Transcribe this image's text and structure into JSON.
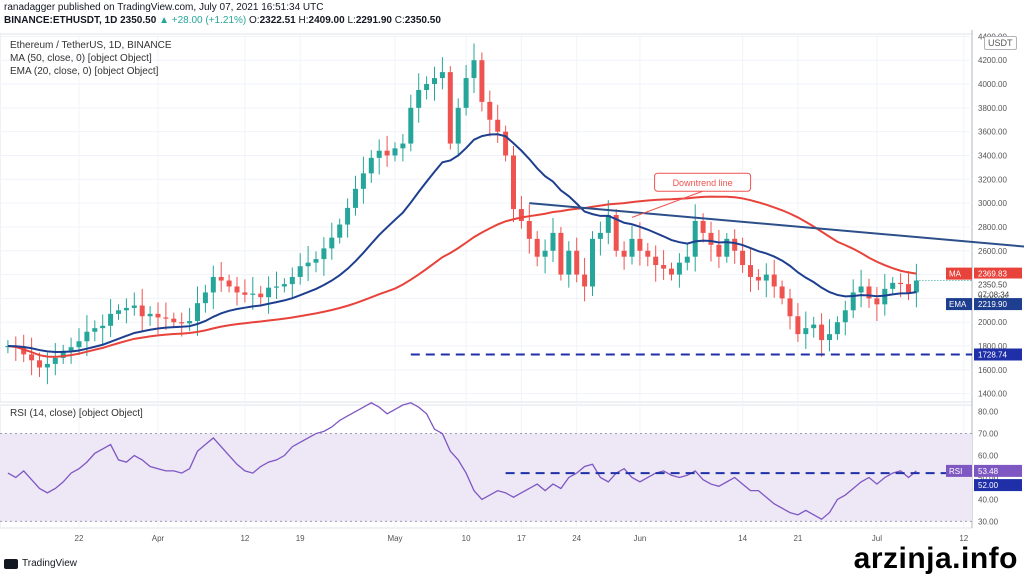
{
  "header": {
    "line1": "ranadagger published on TradingView.com, July 07, 2021 16:51:34 UTC",
    "symbol": "BINANCE:ETHUSDT, 1D",
    "last": "2350.50",
    "change": "▲ +28.00 (+1.21%)",
    "o_label": "O:",
    "o": "2322.51",
    "h_label": "H:",
    "h": "2409.00",
    "l_label": "L:",
    "l": "2291.90",
    "c_label": "C:",
    "c": "2350.50"
  },
  "legend": {
    "title": "Ethereum / TetherUS, 1D, BINANCE",
    "ma": "MA (50, close, 0) [object Object]",
    "ema": "EMA (20, close, 0) [object Object]",
    "rsi": "RSI (14, close) [object Object]"
  },
  "currency_button": "USDT",
  "annotation": "Downtrend line",
  "watermark": "arzinja.info",
  "footer_logo": "TradingView",
  "colors": {
    "up": "#26a69a",
    "down": "#ef5350",
    "ma": "#e8433b",
    "ema": "#1e3f8f",
    "trend": "#2c4f8a",
    "rsi": "#7e57c2",
    "rsi_band": "#ede7f6",
    "support": "#1f2fa8"
  },
  "chart_data": [
    {
      "type": "candlestick",
      "title": "Ethereum / TetherUS, 1D, BINANCE",
      "x_ticks": [
        "22",
        "Apr",
        "12",
        "19",
        "May",
        "10",
        "17",
        "24",
        "Jun",
        "14",
        "21",
        "Jul",
        "12"
      ],
      "x_tick_days": [
        -9,
        1,
        12,
        19,
        31,
        40,
        47,
        54,
        62,
        75,
        82,
        92,
        103
      ],
      "y_ticks": [
        1400,
        1600,
        1800,
        2000,
        2200,
        2400,
        2600,
        2800,
        3000,
        3200,
        3400,
        3600,
        3800,
        4000,
        4200,
        4400
      ],
      "ylim": [
        1330,
        4420
      ],
      "grid": true,
      "closes": [
        1800,
        1785,
        1730,
        1680,
        1620,
        1650,
        1700,
        1760,
        1790,
        1840,
        1920,
        1950,
        1970,
        2070,
        2100,
        2120,
        2140,
        2050,
        2070,
        2040,
        2030,
        2000,
        1990,
        2010,
        2160,
        2250,
        2380,
        2350,
        2300,
        2250,
        2230,
        2240,
        2210,
        2290,
        2300,
        2320,
        2380,
        2470,
        2500,
        2530,
        2620,
        2710,
        2820,
        2960,
        3120,
        3250,
        3380,
        3440,
        3400,
        3460,
        3500,
        3800,
        3950,
        4000,
        4050,
        4100,
        3500,
        3800,
        4050,
        4200,
        3850,
        3700,
        3600,
        3400,
        2950,
        2850,
        2700,
        2550,
        2600,
        2750,
        2400,
        2600,
        2400,
        2300,
        2700,
        2750,
        2900,
        2600,
        2550,
        2700,
        2600,
        2550,
        2480,
        2450,
        2400,
        2500,
        2550,
        2850,
        2750,
        2650,
        2550,
        2700,
        2600,
        2480,
        2380,
        2350,
        2400,
        2300,
        2200,
        2050,
        1900,
        1950,
        1980,
        1850,
        1900,
        2000,
        2100,
        2250,
        2300,
        2200,
        2150,
        2280,
        2330,
        2320,
        2250,
        2350
      ],
      "open_first": 1790,
      "ma_label": "MA",
      "ma_value": "2369.83",
      "ema_label": "EMA",
      "ema_value": "2219.90",
      "price_value": "2350.50",
      "countdown": "07:08:34",
      "support_value": "1728.74",
      "support_level": 1728.74,
      "trendline": {
        "from_day": 48,
        "from_price": 3000,
        "to_day": 115,
        "to_price": 2610
      }
    },
    {
      "type": "line",
      "title": "RSI (14, close) [object Object]",
      "y_ticks": [
        30,
        40,
        50,
        60,
        70,
        80
      ],
      "ylim": [
        27,
        83
      ],
      "band": [
        30,
        70
      ],
      "level_value": "52.00",
      "level": 52.0,
      "rsi_label": "RSI",
      "rsi_value": "53.48",
      "values": [
        52,
        50,
        53,
        49,
        45,
        43,
        45,
        48,
        52,
        54,
        57,
        61,
        63,
        65,
        58,
        57,
        60,
        58,
        55,
        54,
        53,
        53,
        52,
        54,
        62,
        65,
        68,
        64,
        60,
        56,
        53,
        52,
        55,
        57,
        58,
        60,
        64,
        66,
        68,
        70,
        71,
        73,
        76,
        78,
        80,
        82,
        84,
        82,
        79,
        81,
        83,
        84,
        82,
        79,
        72,
        70,
        62,
        58,
        52,
        44,
        40,
        42,
        44,
        43,
        41,
        43,
        45,
        47,
        44,
        47,
        45,
        50,
        52,
        55,
        56,
        50,
        48,
        52,
        54,
        50,
        48,
        50,
        52,
        53,
        51,
        50,
        51,
        53,
        49,
        47,
        46,
        48,
        50,
        47,
        44,
        44,
        41,
        38,
        36,
        34,
        33,
        35,
        33,
        31,
        34,
        40,
        42,
        45,
        48,
        50,
        47,
        50,
        52,
        53,
        50,
        53
      ]
    }
  ]
}
